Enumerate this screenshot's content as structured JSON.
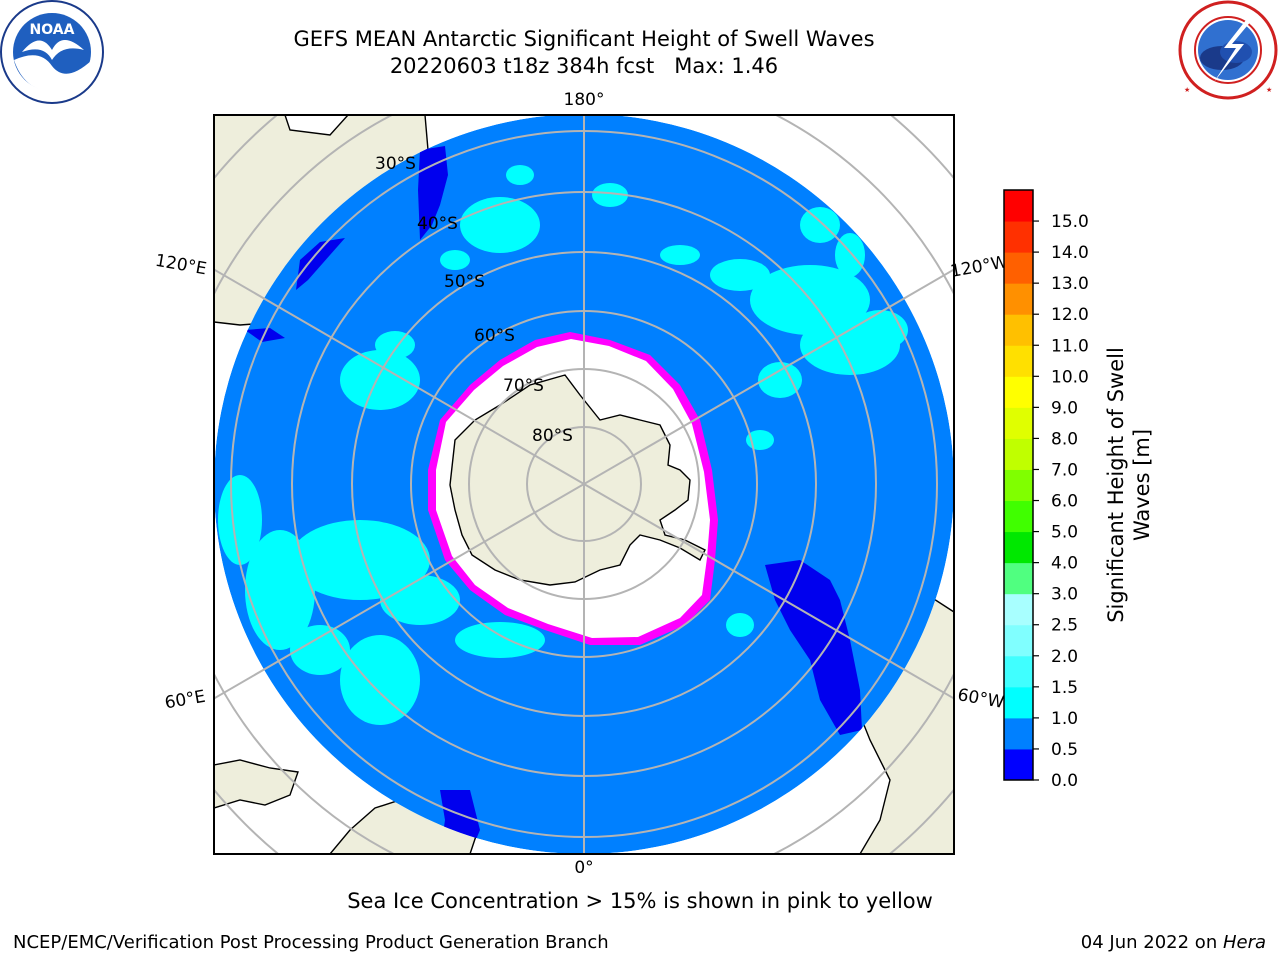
{
  "header": {
    "title_line1": "GEFS MEAN Antarctic Significant Height of Swell Waves",
    "title_line2": "20220603 t18z 384h fcst   Max: 1.46"
  },
  "logos": {
    "left": {
      "name": "noaa-logo",
      "text": "NOAA",
      "ring_text": "NATIONAL OCEANIC AND ATMOSPHERIC ADMINISTRATION · U.S. DEPARTMENT OF COMMERCE"
    },
    "right": {
      "name": "nws-logo",
      "ring_text": "NATIONAL WEATHER SERVICE"
    }
  },
  "map": {
    "projection": "south-polar-stereographic",
    "longitude_labels": {
      "top": "180°",
      "bottom": "0°",
      "upper_left": "120°E",
      "upper_right": "120°W",
      "lower_left": "60°E",
      "lower_right": "60°W"
    },
    "latitude_labels": [
      "30°S",
      "40°S",
      "50°S",
      "60°S",
      "70°S",
      "80°S"
    ],
    "colors": {
      "land": "#eeeedc",
      "ocean_base": "#0080ff",
      "swell_1_1_5": "#00ffff",
      "swell_0_0_5": "#0000ff",
      "swell_0_5_1": "#0000cc",
      "ice_white": "#ffffff",
      "ice_edge": "#ff00ff",
      "ice_yellow": "#ffc000",
      "graticule": "#b4b4b4"
    }
  },
  "colorbar": {
    "title_line1": "Significant Height of Swell",
    "title_line2": "Waves [m]",
    "ticks": [
      "0.0",
      "0.5",
      "1.0",
      "1.5",
      "2.0",
      "2.5",
      "3.0",
      "4.0",
      "5.0",
      "6.0",
      "7.0",
      "8.0",
      "9.0",
      "10.0",
      "11.0",
      "12.0",
      "13.0",
      "14.0",
      "15.0"
    ],
    "colors": [
      "#0000ff",
      "#0080ff",
      "#00ffff",
      "#40ffff",
      "#80ffff",
      "#a8ffff",
      "#50ff80",
      "#00e800",
      "#40ff00",
      "#80ff00",
      "#c0ff00",
      "#e0ff00",
      "#ffff00",
      "#ffe000",
      "#ffc000",
      "#ff9000",
      "#ff6000",
      "#ff3000",
      "#ff0000"
    ]
  },
  "footer": {
    "ice_note": "Sea Ice Concentration > 15% is shown in pink to yellow",
    "left": "NCEP/EMC/Verification Post Processing Product Generation Branch",
    "right_prefix": "04 Jun 2022 on ",
    "right_host": "Hera"
  }
}
